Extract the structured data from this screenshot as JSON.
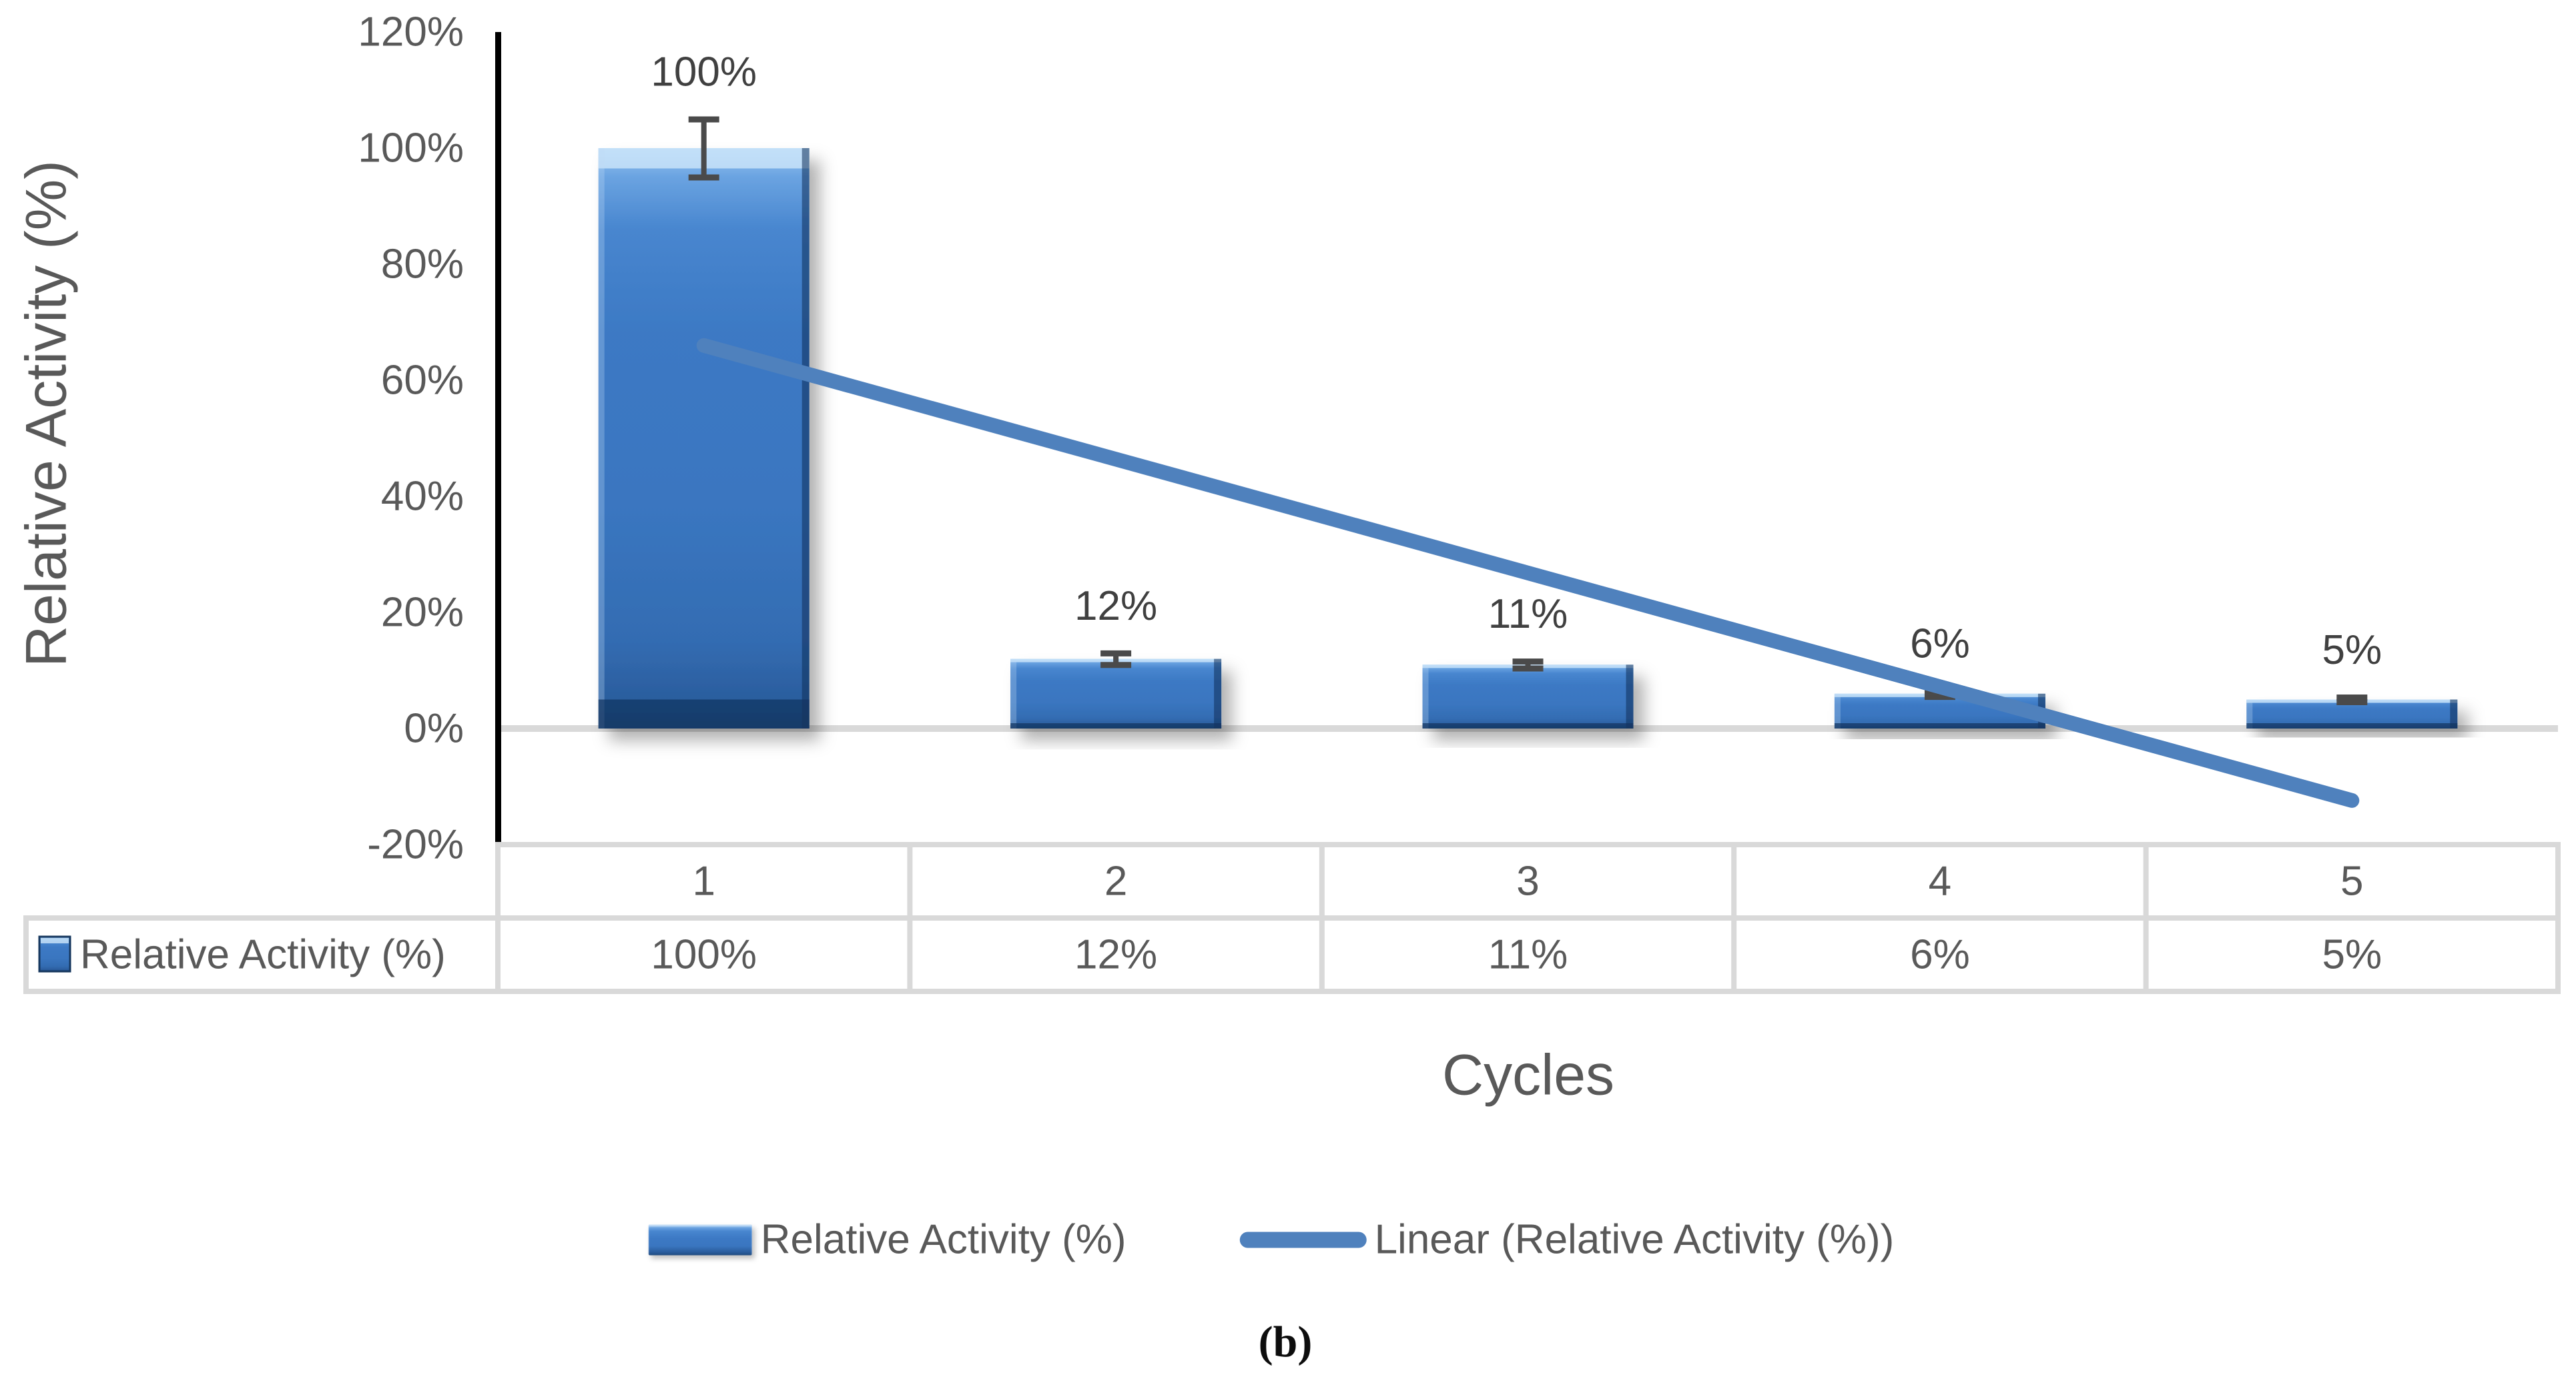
{
  "caption": "(b)",
  "axis_titles": {
    "y": "Relative Activity (%)",
    "x": "Cycles"
  },
  "legend": {
    "bar_label": "Relative Activity (%)",
    "line_label": "Linear (Relative Activity (%))"
  },
  "chart_data": {
    "type": "bar",
    "title": "",
    "xlabel": "Cycles",
    "ylabel": "Relative Activity (%)",
    "categories": [
      "1",
      "2",
      "3",
      "4",
      "5"
    ],
    "series": [
      {
        "name": "Relative Activity (%)",
        "values": [
          100,
          12,
          11,
          6,
          5
        ],
        "data_labels": [
          "100%",
          "12%",
          "11%",
          "6%",
          "5%"
        ]
      }
    ],
    "error_bars_pct": [
      5,
      1,
      0.6,
      0.5,
      0.4
    ],
    "y_ticks": [
      "120%",
      "100%",
      "80%",
      "60%",
      "40%",
      "20%",
      "0%",
      "-20%"
    ],
    "y_tick_values": [
      120,
      100,
      80,
      60,
      40,
      20,
      0,
      -20
    ],
    "ylim": [
      -20,
      120
    ],
    "grid": "zero-line-only",
    "legend_position": "bottom",
    "trendline": {
      "type": "linear",
      "start_value_pct": 66,
      "end_value_pct": -12.4
    },
    "data_table": {
      "row_label": "Relative Activity (%)",
      "values": [
        "100%",
        "12%",
        "11%",
        "6%",
        "5%"
      ]
    },
    "colors": {
      "bar_main": "#3B78C3",
      "bar_highlight": "#98C6F2",
      "bar_dark_edge": "#1F4B80",
      "trendline": "#4F81BD",
      "axis_line": "#000000",
      "zero_gridline": "#D9D9D9",
      "table_border": "#D9D9D9",
      "tick_text": "#595959",
      "table_text": "#595959",
      "data_label_text": "#404040",
      "error_bar": "#4A4A4A"
    }
  }
}
